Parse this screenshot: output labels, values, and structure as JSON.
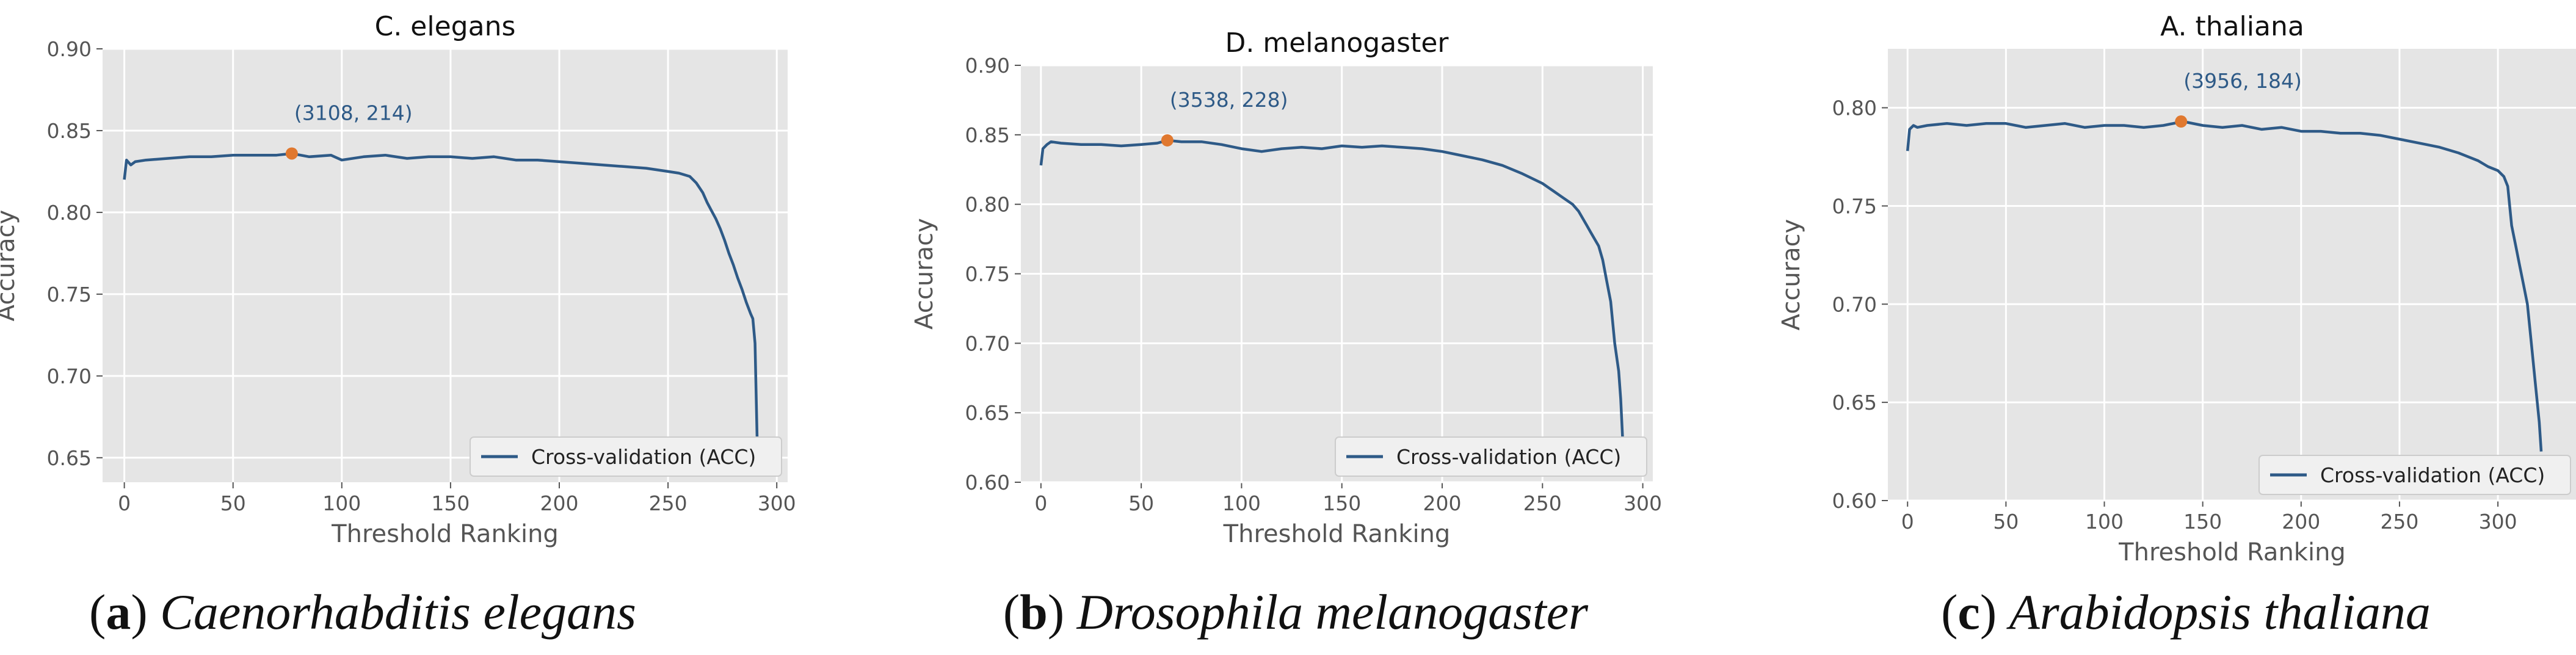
{
  "chart_data": [
    {
      "type": "line",
      "title": "C. elegans",
      "xlabel": "Threshold Ranking",
      "ylabel": "Accuracy",
      "xlim": [
        -10,
        305
      ],
      "ylim": [
        0.635,
        0.9
      ],
      "xticks": [
        0,
        50,
        100,
        150,
        200,
        250,
        300
      ],
      "yticks": [
        0.65,
        0.7,
        0.75,
        0.8,
        0.85,
        0.9
      ],
      "ytick_labels": [
        "0.65",
        "0.70",
        "0.75",
        "0.80",
        "0.85",
        "0.90"
      ],
      "grid": true,
      "legend": "lower-right",
      "series": [
        {
          "name": "Cross-validation (ACC)",
          "x": [
            0,
            1,
            3,
            5,
            10,
            20,
            30,
            40,
            50,
            60,
            70,
            77,
            85,
            95,
            100,
            110,
            120,
            130,
            140,
            150,
            160,
            170,
            180,
            190,
            200,
            210,
            220,
            230,
            240,
            250,
            255,
            260,
            263,
            266,
            268,
            270,
            272,
            274,
            276,
            278,
            280,
            282,
            284,
            286,
            288,
            289,
            290,
            291
          ],
          "values": [
            0.82,
            0.832,
            0.829,
            0.831,
            0.832,
            0.833,
            0.834,
            0.834,
            0.835,
            0.835,
            0.835,
            0.836,
            0.834,
            0.835,
            0.832,
            0.834,
            0.835,
            0.833,
            0.834,
            0.834,
            0.833,
            0.834,
            0.832,
            0.832,
            0.831,
            0.83,
            0.829,
            0.828,
            0.827,
            0.825,
            0.824,
            0.822,
            0.818,
            0.812,
            0.806,
            0.801,
            0.796,
            0.79,
            0.783,
            0.775,
            0.768,
            0.76,
            0.753,
            0.745,
            0.738,
            0.735,
            0.72,
            0.66
          ]
        }
      ],
      "annotation": {
        "x": 77,
        "y": 0.836,
        "label": "(3108, 214)"
      },
      "caption_letter": "a",
      "caption_species": "Caenorhabditis elegans"
    },
    {
      "type": "line",
      "title": "D. melanogaster",
      "xlabel": "Threshold Ranking",
      "ylabel": "Accuracy",
      "xlim": [
        -10,
        305
      ],
      "ylim": [
        0.6,
        0.9
      ],
      "xticks": [
        0,
        50,
        100,
        150,
        200,
        250,
        300
      ],
      "yticks": [
        0.6,
        0.65,
        0.7,
        0.75,
        0.8,
        0.85,
        0.9
      ],
      "ytick_labels": [
        "0.60",
        "0.65",
        "0.70",
        "0.75",
        "0.80",
        "0.85",
        "0.90"
      ],
      "grid": true,
      "legend": "lower-right",
      "series": [
        {
          "name": "Cross-validation (ACC)",
          "x": [
            0,
            1,
            3,
            5,
            10,
            20,
            30,
            40,
            50,
            58,
            63,
            70,
            80,
            90,
            100,
            110,
            120,
            130,
            140,
            150,
            160,
            170,
            180,
            190,
            200,
            210,
            220,
            230,
            240,
            250,
            255,
            260,
            265,
            268,
            270,
            272,
            274,
            276,
            278,
            280,
            282,
            284,
            286,
            288,
            289,
            290
          ],
          "values": [
            0.828,
            0.84,
            0.843,
            0.845,
            0.844,
            0.843,
            0.843,
            0.842,
            0.843,
            0.844,
            0.846,
            0.845,
            0.845,
            0.843,
            0.84,
            0.838,
            0.84,
            0.841,
            0.84,
            0.842,
            0.841,
            0.842,
            0.841,
            0.84,
            0.838,
            0.835,
            0.832,
            0.828,
            0.822,
            0.815,
            0.81,
            0.805,
            0.8,
            0.795,
            0.79,
            0.785,
            0.78,
            0.775,
            0.77,
            0.76,
            0.745,
            0.73,
            0.7,
            0.68,
            0.66,
            0.63
          ]
        }
      ],
      "annotation": {
        "x": 63,
        "y": 0.846,
        "label": "(3538, 228)"
      },
      "caption_letter": "b",
      "caption_species": "Drosophila melanogaster"
    },
    {
      "type": "line",
      "title": "A. thaliana",
      "xlabel": "Threshold Ranking",
      "ylabel": "Accuracy",
      "xlim": [
        -10,
        340
      ],
      "ylim": [
        0.6,
        0.83
      ],
      "xticks": [
        0,
        50,
        100,
        150,
        200,
        250,
        300
      ],
      "yticks": [
        0.6,
        0.65,
        0.7,
        0.75,
        0.8
      ],
      "ytick_labels": [
        "0.60",
        "0.65",
        "0.70",
        "0.75",
        "0.80"
      ],
      "grid": true,
      "legend": "lower-right",
      "series": [
        {
          "name": "Cross-validation (ACC)",
          "x": [
            0,
            1,
            3,
            5,
            10,
            20,
            30,
            40,
            50,
            60,
            70,
            80,
            90,
            100,
            110,
            120,
            130,
            140,
            150,
            160,
            170,
            180,
            190,
            200,
            210,
            220,
            230,
            240,
            250,
            260,
            270,
            280,
            290,
            295,
            300,
            303,
            305,
            307,
            309,
            311,
            313,
            315,
            317,
            319,
            321,
            322
          ],
          "values": [
            0.778,
            0.789,
            0.791,
            0.79,
            0.791,
            0.792,
            0.791,
            0.792,
            0.792,
            0.79,
            0.791,
            0.792,
            0.79,
            0.791,
            0.791,
            0.79,
            0.791,
            0.793,
            0.791,
            0.79,
            0.791,
            0.789,
            0.79,
            0.788,
            0.788,
            0.787,
            0.787,
            0.786,
            0.784,
            0.782,
            0.78,
            0.777,
            0.773,
            0.77,
            0.768,
            0.765,
            0.76,
            0.74,
            0.73,
            0.72,
            0.71,
            0.7,
            0.68,
            0.66,
            0.64,
            0.625
          ]
        }
      ],
      "annotation": {
        "x": 139,
        "y": 0.793,
        "label": "(3956, 184)"
      },
      "caption_letter": "c",
      "caption_species": "Arabidopsis thaliana"
    }
  ],
  "colors": {
    "line": "#2e5a87",
    "marker": "#e0782f",
    "plot_bg": "#e5e5e5",
    "grid": "#ffffff",
    "tick_text": "#555555",
    "label_text": "#555555",
    "title_text": "#111111",
    "annotation_text": "#2e5a87",
    "caption_text": "#111111"
  }
}
